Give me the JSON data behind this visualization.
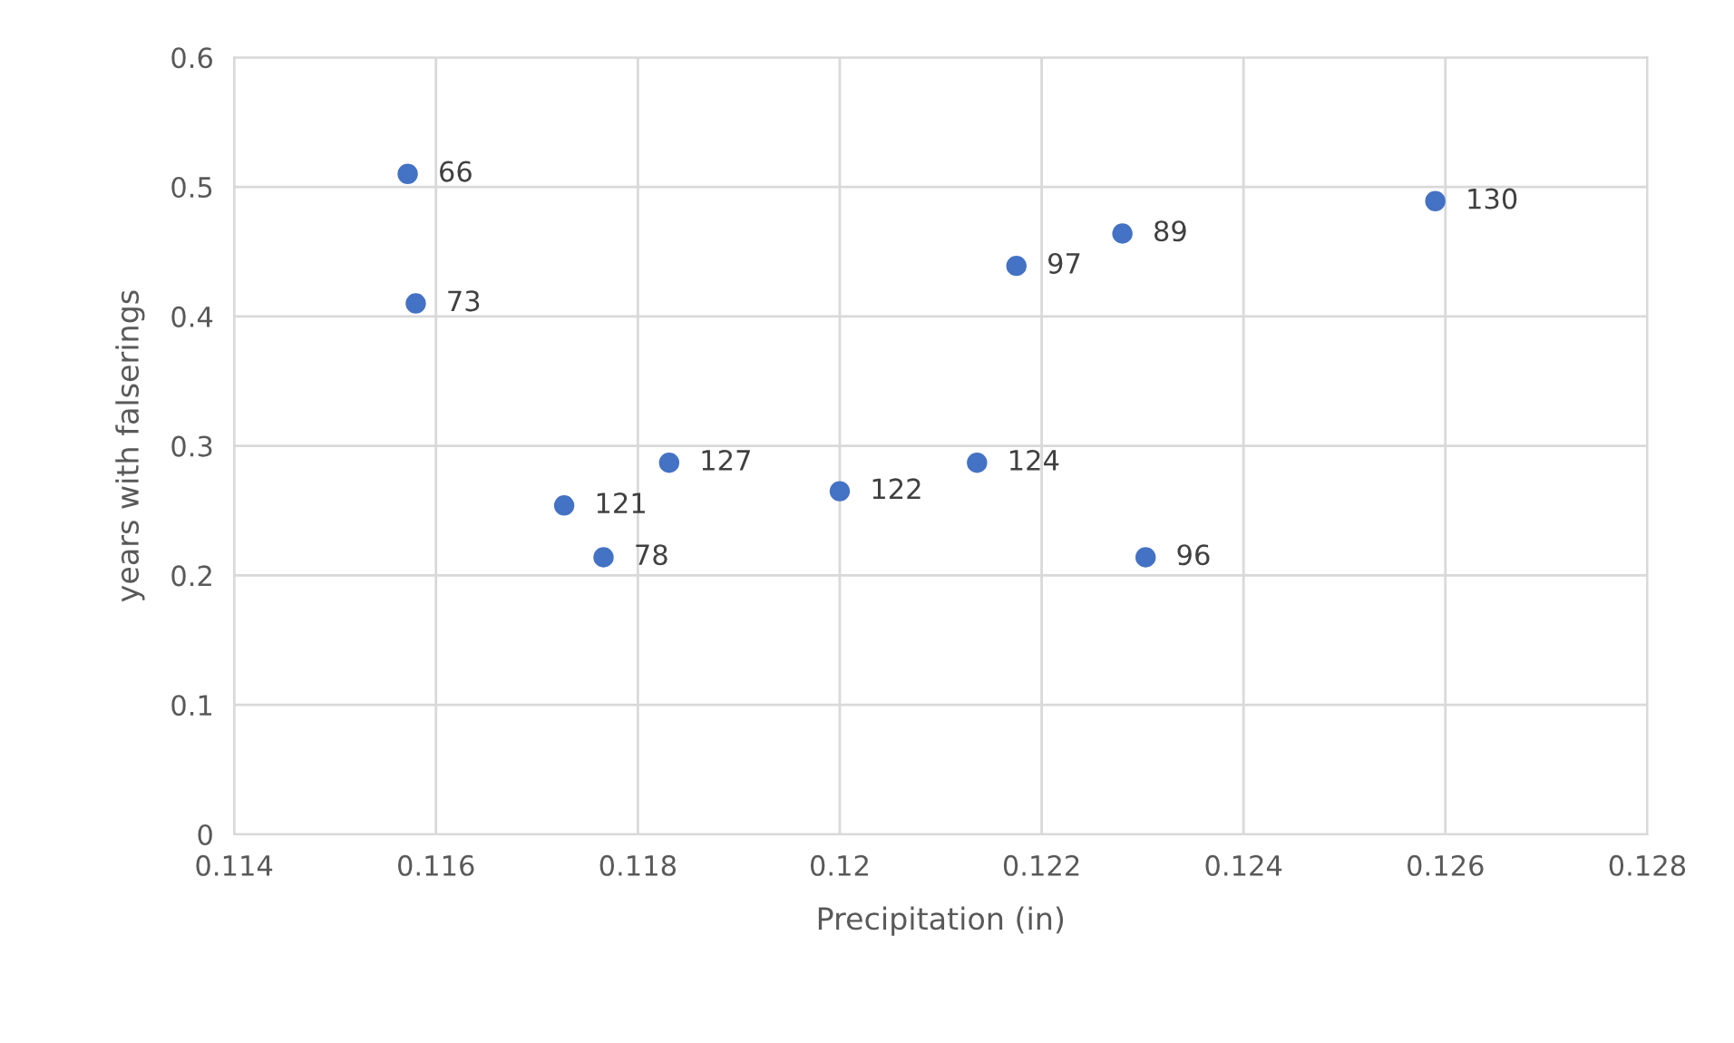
{
  "chart_data": {
    "type": "scatter",
    "xlabel": "Precipitation (in)",
    "ylabel": "years with falserings",
    "x": [
      0.11572,
      0.1158,
      0.11727,
      0.11766,
      0.11831,
      0.12,
      0.12136,
      0.12175,
      0.1228,
      0.12303,
      0.1259
    ],
    "values": [
      0.51,
      0.41,
      0.254,
      0.214,
      0.287,
      0.265,
      0.287,
      0.439,
      0.464,
      0.214,
      0.489
    ],
    "color": "#4472c4",
    "marker": "circle",
    "xlim": [
      0.114,
      0.128
    ],
    "xticks": [
      0.114,
      0.116,
      0.118,
      0.12,
      0.122,
      0.124,
      0.126,
      0.128
    ],
    "ylim": [
      0,
      0.6
    ],
    "yticks": [
      0,
      0.1,
      0.2,
      0.3,
      0.4,
      0.5,
      0.6
    ],
    "grid": true,
    "annotations": [
      {
        "text": "66",
        "x": 0.11572,
        "y": 0.51
      },
      {
        "text": "73",
        "x": 0.1158,
        "y": 0.41
      },
      {
        "text": "121",
        "x": 0.11727,
        "y": 0.254
      },
      {
        "text": "78",
        "x": 0.11766,
        "y": 0.214
      },
      {
        "text": "127",
        "x": 0.11831,
        "y": 0.287
      },
      {
        "text": "122",
        "x": 0.12,
        "y": 0.265
      },
      {
        "text": "124",
        "x": 0.12136,
        "y": 0.287
      },
      {
        "text": "97",
        "x": 0.12175,
        "y": 0.439
      },
      {
        "text": "89",
        "x": 0.1228,
        "y": 0.464
      },
      {
        "text": "96",
        "x": 0.12303,
        "y": 0.214
      },
      {
        "text": "130",
        "x": 0.1259,
        "y": 0.489
      }
    ]
  }
}
